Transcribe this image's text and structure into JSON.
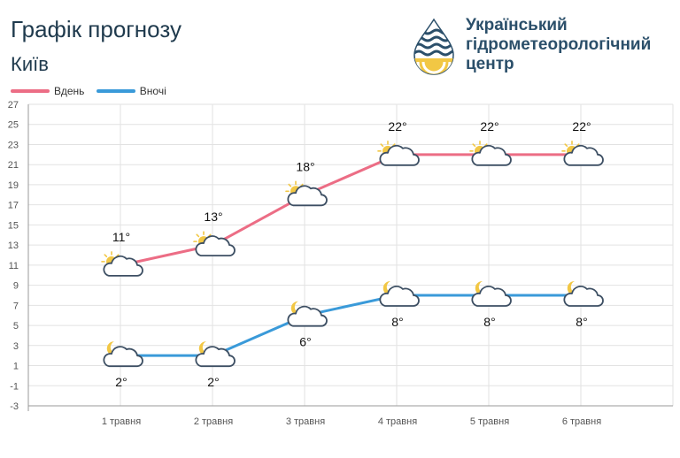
{
  "header": {
    "title": "Графік прогнозу",
    "city": "Київ"
  },
  "logo": {
    "line1": "Український",
    "line2": "гідрометеорологічний",
    "line3": "центр",
    "icon": "hydromet-drop-logo-icon"
  },
  "colors": {
    "day": "#ec6d85",
    "night": "#3a9ad9",
    "grid": "#e2e2e2",
    "axis": "#999999",
    "title": "#1f3a4d"
  },
  "chart_data": {
    "type": "line",
    "categories": [
      "1 травня",
      "2 травня",
      "3 травня",
      "4 травня",
      "5 травня",
      "6 травня"
    ],
    "ylim": [
      -3,
      27
    ],
    "yticks": [
      -3,
      -1,
      1,
      3,
      5,
      7,
      9,
      11,
      13,
      15,
      17,
      19,
      21,
      23,
      25,
      27
    ],
    "grid": true,
    "legend_position": "top-left",
    "series": [
      {
        "name": "Вдень",
        "values": [
          11,
          13,
          18,
          22,
          22,
          22
        ],
        "labels": [
          "11°",
          "13°",
          "18°",
          "22°",
          "22°",
          "22°"
        ],
        "icon": "sun-cloud-icon",
        "color": "#ec6d85"
      },
      {
        "name": "Вночі",
        "values": [
          2,
          2,
          6,
          8,
          8,
          8
        ],
        "labels": [
          "2°",
          "2°",
          "6°",
          "8°",
          "8°",
          "8°"
        ],
        "icon": "moon-cloud-icon",
        "color": "#3a9ad9"
      }
    ]
  }
}
